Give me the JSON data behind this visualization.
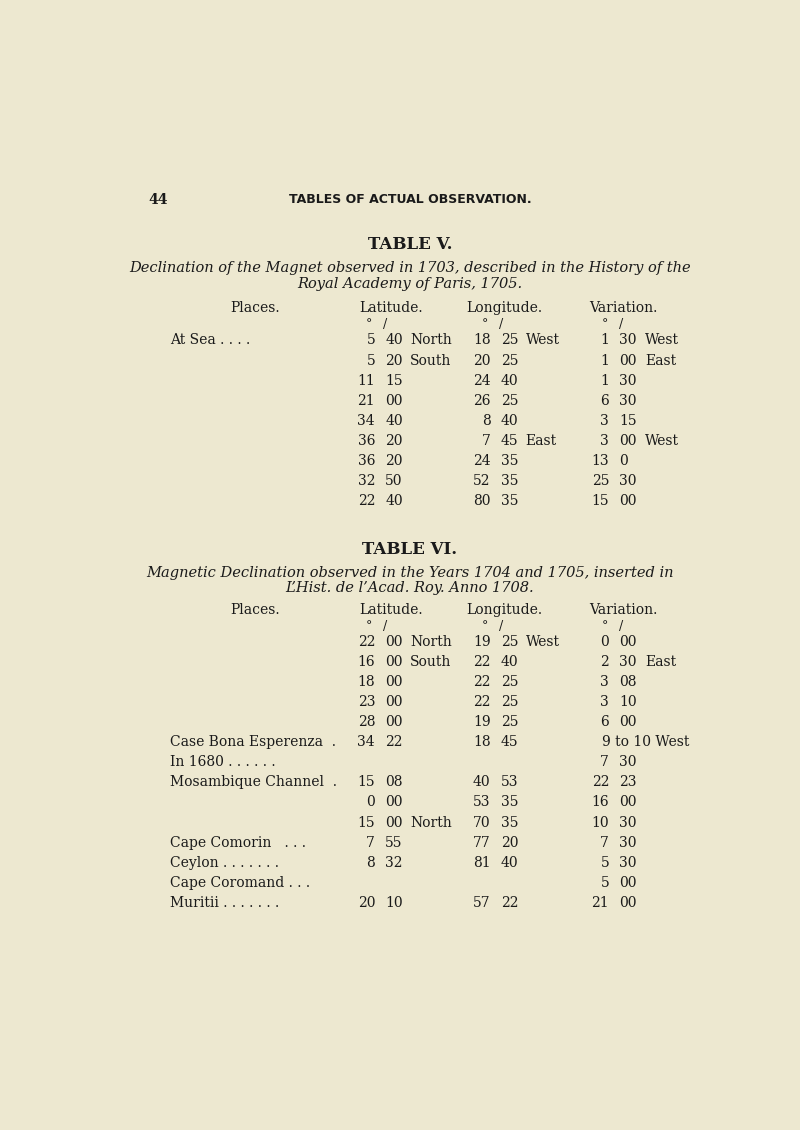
{
  "bg_color": "#ede8d0",
  "text_color": "#1a1a1a",
  "page_number": "44",
  "page_header": "TABLES OF ACTUAL OBSERVATION.",
  "table5_title": "TABLE V.",
  "table5_subtitle1": "Declination of the Magnet observed in 1703, described in the History of the",
  "table5_subtitle2": "Royal Academy of Paris, 1705.",
  "table6_title": "TABLE VI.",
  "table6_subtitle1": "Magnetic Declination observed in the Years 1704 and 1705, inserted in",
  "table6_subtitle2": "L’Hist. de l’Acad. Roy. Anno 1708.",
  "table5_rows": [
    [
      "At Sea . . . .",
      "5",
      "40",
      "North",
      "18",
      "25",
      "West",
      "1",
      "30",
      "West"
    ],
    [
      "",
      "5",
      "20",
      "South",
      "20",
      "25",
      "",
      "1",
      "00",
      "East"
    ],
    [
      "",
      "11",
      "15",
      "",
      "24",
      "40",
      "",
      "1",
      "30",
      ""
    ],
    [
      "",
      "21",
      "00",
      "",
      "26",
      "25",
      "",
      "6",
      "30",
      ""
    ],
    [
      "",
      "34",
      "40",
      "",
      "8",
      "40",
      "",
      "3",
      "15",
      ""
    ],
    [
      "",
      "36",
      "20",
      "",
      "7",
      "45",
      "East",
      "3",
      "00",
      "West"
    ],
    [
      "",
      "36",
      "20",
      "",
      "24",
      "35",
      "",
      "13",
      "0",
      ""
    ],
    [
      "",
      "32",
      "50",
      "",
      "52",
      "35",
      "",
      "25",
      "30",
      ""
    ],
    [
      "",
      "22",
      "40",
      "",
      "80",
      "35",
      "",
      "15",
      "00",
      ""
    ]
  ],
  "table6_rows": [
    [
      "",
      "22",
      "00",
      "North",
      "19",
      "25",
      "West",
      "0",
      "00",
      ""
    ],
    [
      "",
      "16",
      "00",
      "South",
      "22",
      "40",
      "",
      "2",
      "30",
      "East"
    ],
    [
      "",
      "18",
      "00",
      "",
      "22",
      "25",
      "",
      "3",
      "08",
      ""
    ],
    [
      "",
      "23",
      "00",
      "",
      "22",
      "25",
      "",
      "3",
      "10",
      ""
    ],
    [
      "",
      "28",
      "00",
      "",
      "19",
      "25",
      "",
      "6",
      "00",
      ""
    ],
    [
      "Case Bona Esperenza  .",
      "34",
      "22",
      "",
      "18",
      "45",
      "",
      "9to10",
      "",
      "West"
    ],
    [
      "In 1680 . . . . . .",
      "",
      "",
      "",
      "",
      "",
      "",
      "7",
      "30",
      ""
    ],
    [
      "Mosambique Channel  .",
      "15",
      "08",
      "",
      "40",
      "53",
      "",
      "22",
      "23",
      ""
    ],
    [
      "",
      "0",
      "00",
      "",
      "53",
      "35",
      "",
      "16",
      "00",
      ""
    ],
    [
      "",
      "15",
      "00",
      "North",
      "70",
      "35",
      "",
      "10",
      "30",
      ""
    ],
    [
      "Cape Comorin   . . .",
      "7",
      "55",
      "",
      "77",
      "20",
      "",
      "7",
      "30",
      ""
    ],
    [
      "Ceylon . . . . . . .",
      "8",
      "32",
      "",
      "81",
      "40",
      "",
      "5",
      "30",
      ""
    ],
    [
      "Cape Coromand . . .",
      "",
      "",
      "",
      "",
      "",
      "",
      "5",
      "00",
      ""
    ],
    [
      "Muritii . . . . . . .",
      "20",
      "10",
      "",
      "57",
      "22",
      "",
      "21",
      "00",
      ""
    ]
  ]
}
